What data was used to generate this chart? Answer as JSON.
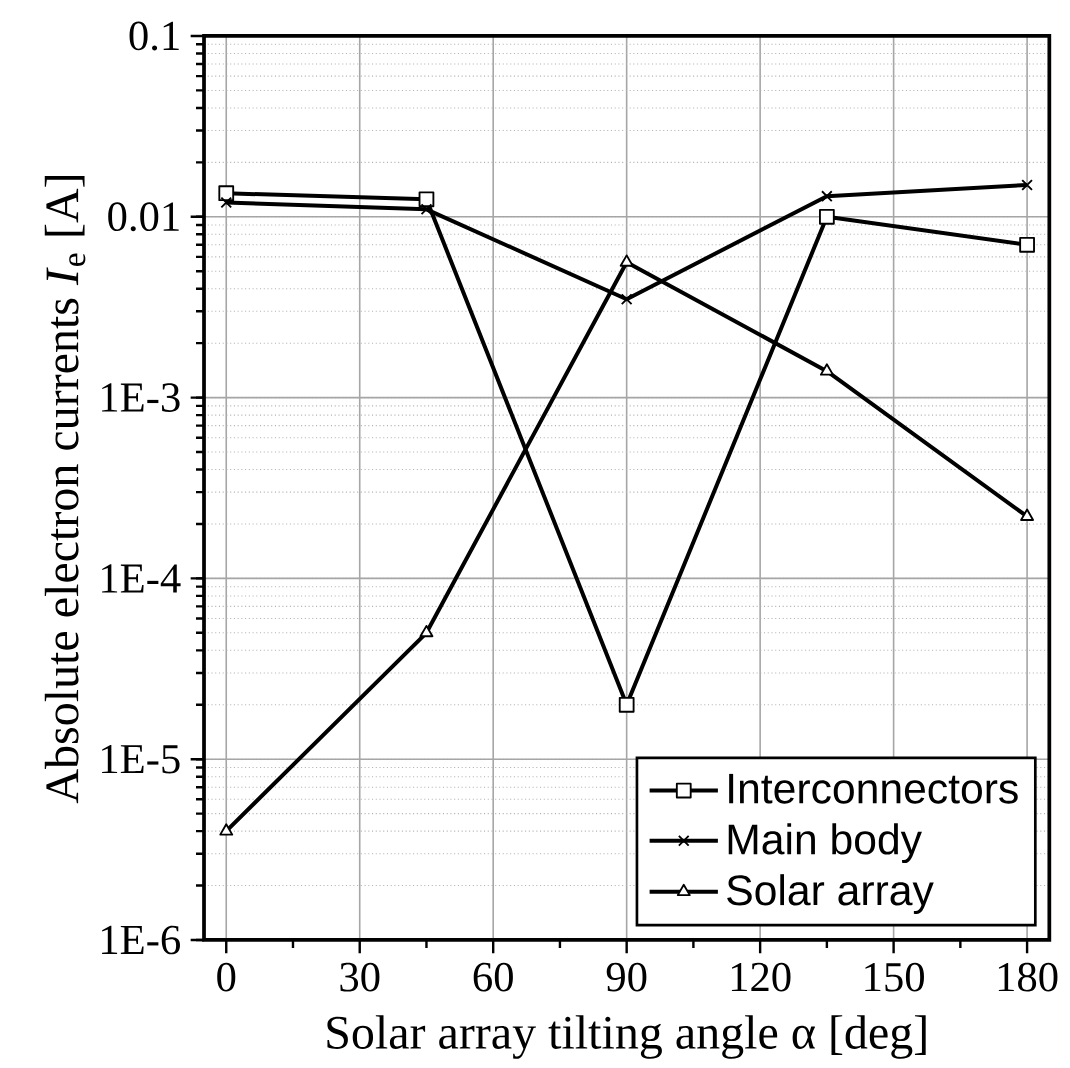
{
  "chart_data": {
    "type": "line",
    "xlabel": "Solar array tilting angle α [deg]",
    "ylabel": "Absolute electron currents *I*$_{e}$ [A]",
    "x": [
      0,
      45,
      90,
      135,
      180
    ],
    "series": [
      {
        "name": "Interconnectors",
        "color": "#000000",
        "marker": "square",
        "values": [
          0.0135,
          0.0125,
          2e-05,
          0.01,
          0.007
        ]
      },
      {
        "name": "Main body",
        "color": "#000000",
        "marker": "cross",
        "values": [
          0.012,
          0.011,
          0.0035,
          0.013,
          0.015
        ]
      },
      {
        "name": "Solar array",
        "color": "#000000",
        "marker": "triangle",
        "values": [
          4e-06,
          5e-05,
          0.0056,
          0.0014,
          0.00022
        ]
      }
    ],
    "log": "y",
    "xlim": [
      -5,
      185
    ],
    "ylim": [
      1e-06,
      0.1
    ],
    "xticks": [
      0,
      30,
      60,
      90,
      120,
      150,
      180
    ],
    "yticks": [
      {
        "value": 1e-06,
        "label": "1E-6"
      },
      {
        "value": 1e-05,
        "label": "1E-5"
      },
      {
        "value": 0.0001,
        "label": "1E-4"
      },
      {
        "value": 0.001,
        "label": "1E-3"
      },
      0.01,
      0.1
    ],
    "grid": true,
    "legend": "bottom right",
    "line_style": "solid"
  }
}
